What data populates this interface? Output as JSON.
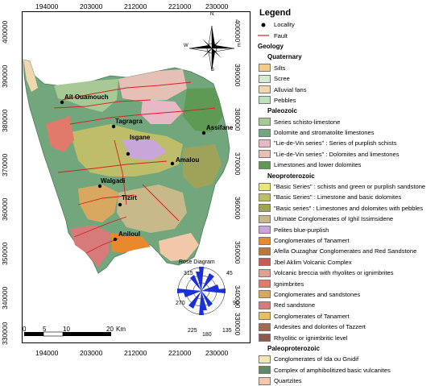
{
  "x_ticks": [
    "194000",
    "203000",
    "212000",
    "221000",
    "230000"
  ],
  "y_ticks": [
    "400000",
    "390000",
    "380000",
    "370000",
    "360000",
    "350000",
    "340000",
    "330000"
  ],
  "localities": [
    {
      "name": "Aït Ouamouch"
    },
    {
      "name": "Tagragra"
    },
    {
      "name": "Assifane"
    },
    {
      "name": "Isgane"
    },
    {
      "name": "Amalou"
    },
    {
      "name": "Walgadi"
    },
    {
      "name": "Tizirt"
    },
    {
      "name": "Aniloul"
    }
  ],
  "compass": {
    "n": "N",
    "s": "S",
    "e": "E",
    "w": "W"
  },
  "rose": {
    "title": "Rose Diagram",
    "labels": [
      "315",
      "45",
      "270",
      "90",
      "225",
      "135",
      "180"
    ]
  },
  "scale": {
    "labels": [
      "0",
      "5",
      "10",
      "20"
    ],
    "unit": "Km"
  },
  "legend": {
    "title": "Legend",
    "locality_label": "Locality",
    "fault_label": "Fault",
    "geology_label": "Geology",
    "groups": [
      {
        "name": "Quaternary",
        "items": [
          {
            "label": "Silts",
            "color": "#f3c98c"
          },
          {
            "label": "Scree",
            "color": "#d6ead0"
          },
          {
            "label": "Alluvial fans",
            "color": "#f1d7b0"
          },
          {
            "label": "Pebbles",
            "color": "#bfe0bd"
          }
        ]
      },
      {
        "name": "Paleozoic",
        "items": [
          {
            "label": "Series schisto-limestone",
            "color": "#a6c995"
          },
          {
            "label": "Dolomite and stromatolite limestones",
            "color": "#72a77d"
          },
          {
            "label": "\"Lie-de-Vin series\" : Series of purplish schists",
            "color": "#e8b8c7"
          },
          {
            "label": "\"Lie-de-Vin series\" : Dolomites and limestones",
            "color": "#e6c0b6"
          },
          {
            "label": "Limestones and lower dolomites",
            "color": "#5f9a55"
          }
        ]
      },
      {
        "name": "Neoproterozoic",
        "items": [
          {
            "label": "\"Basic Series\" : schists and green or purplish sandstone",
            "color": "#e8e87a"
          },
          {
            "label": "\"Basic Series\" : Limestone and basic dolomites",
            "color": "#bdbd6a"
          },
          {
            "label": "\"Basic series\" : Limestones and dolomites with pebbles",
            "color": "#9fa35a"
          },
          {
            "label": "Ultimate Conglomerates of Ighil Issimsidene",
            "color": "#c7b98a"
          },
          {
            "label": "Pelites blue-purplish",
            "color": "#c9a6d9"
          },
          {
            "label": "Conglomerates of Tanamert",
            "color": "#e8892d"
          },
          {
            "label": "Afella Ouzaghar Conglomerates and Red Sandstone",
            "color": "#b77a3a"
          },
          {
            "label": "Jbel Aklim Volcanic Complex",
            "color": "#c75a5a"
          },
          {
            "label": "Volcanic breccia with rhyolites or ignimbrites",
            "color": "#e0a090"
          },
          {
            "label": "Ignimbrites",
            "color": "#e07a6a"
          },
          {
            "label": "Conglomerates and sandstones",
            "color": "#d9a860"
          },
          {
            "label": "Red sandstone",
            "color": "#d77a7a"
          },
          {
            "label": "Conglomerates of Tanamert",
            "color": "#e6c060"
          },
          {
            "label": "Andesites and dolorites of Tazzert",
            "color": "#a06a50"
          },
          {
            "label": "Rhyolitic or ignimbritic level",
            "color": "#8a5a4a"
          }
        ]
      },
      {
        "name": "Paleoproterozoic",
        "items": [
          {
            "label": "Conglomerates of Ida ou Gnidif",
            "color": "#f4e6b0"
          },
          {
            "label": "Complex of amphibolitized basic vulcanites",
            "color": "#5d8a6a"
          },
          {
            "label": "Quartzites",
            "color": "#f2c8a8"
          }
        ]
      }
    ]
  }
}
